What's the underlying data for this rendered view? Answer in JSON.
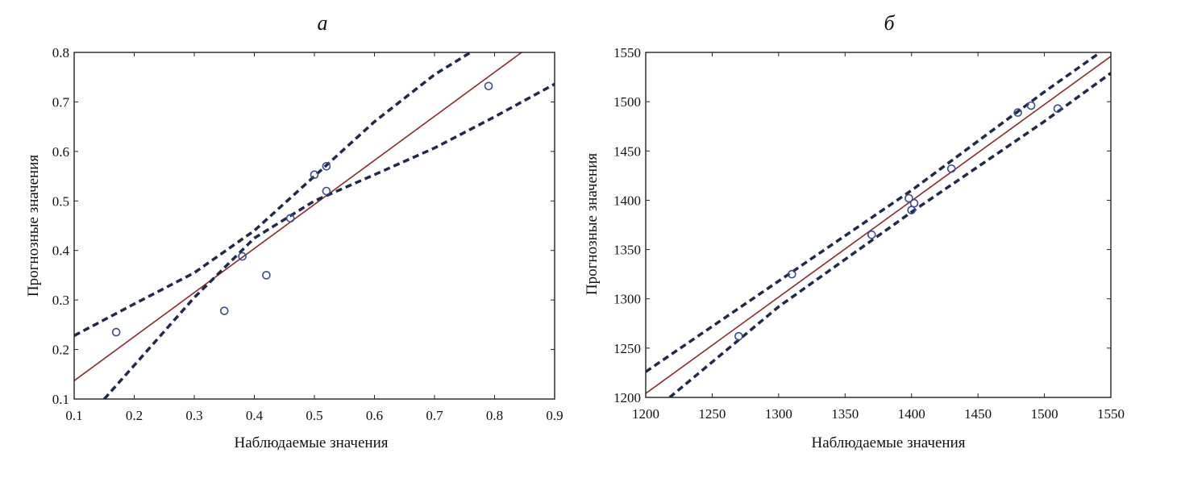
{
  "chart_data": [
    {
      "type": "scatter",
      "panel_label": "а",
      "xlabel": "Наблюдаемые значения",
      "ylabel": "Прогнозные значения",
      "xlim": [
        0.1,
        0.9
      ],
      "ylim": [
        0.1,
        0.8
      ],
      "xticks": [
        "0.1",
        "0.2",
        "0.3",
        "0.4",
        "0.5",
        "0.6",
        "0.7",
        "0.8",
        "0.9"
      ],
      "yticks": [
        "0.1",
        "0.2",
        "0.3",
        "0.4",
        "0.5",
        "0.6",
        "0.7",
        "0.8"
      ],
      "grid": false,
      "points": [
        {
          "x": 0.17,
          "y": 0.235
        },
        {
          "x": 0.35,
          "y": 0.278
        },
        {
          "x": 0.38,
          "y": 0.388
        },
        {
          "x": 0.42,
          "y": 0.35
        },
        {
          "x": 0.46,
          "y": 0.465
        },
        {
          "x": 0.5,
          "y": 0.553
        },
        {
          "x": 0.52,
          "y": 0.52
        },
        {
          "x": 0.52,
          "y": 0.57
        },
        {
          "x": 0.79,
          "y": 0.732
        }
      ],
      "fit_line": {
        "x": [
          0.1,
          0.845
        ],
        "y": [
          0.137,
          0.8
        ]
      },
      "confidence_upper": {
        "x": [
          0.1,
          0.2,
          0.3,
          0.4,
          0.5,
          0.6,
          0.7,
          0.76
        ],
        "y": [
          0.228,
          0.292,
          0.355,
          0.44,
          0.55,
          0.66,
          0.755,
          0.8
        ]
      },
      "confidence_lower": {
        "x": [
          0.15,
          0.2,
          0.3,
          0.4,
          0.5,
          0.6,
          0.7,
          0.8,
          0.9
        ],
        "y": [
          0.1,
          0.168,
          0.305,
          0.425,
          0.5,
          0.553,
          0.607,
          0.67,
          0.736
        ]
      },
      "colors": {
        "points": "#3a4a9a",
        "fit_line": "#8b2b2b",
        "confidence": "#1f2a4a"
      }
    },
    {
      "type": "scatter",
      "panel_label": "б",
      "xlabel": "Наблюдаемые значения",
      "ylabel": "Прогнозные значения",
      "xlim": [
        1200,
        1550
      ],
      "ylim": [
        1200,
        1550
      ],
      "xticks": [
        "1200",
        "1250",
        "1300",
        "1350",
        "1400",
        "1450",
        "1500",
        "1550"
      ],
      "yticks": [
        "1200",
        "1250",
        "1300",
        "1350",
        "1400",
        "1450",
        "1500",
        "1550"
      ],
      "grid": false,
      "points": [
        {
          "x": 1270,
          "y": 1262
        },
        {
          "x": 1310,
          "y": 1325
        },
        {
          "x": 1370,
          "y": 1365
        },
        {
          "x": 1398,
          "y": 1402
        },
        {
          "x": 1400,
          "y": 1390
        },
        {
          "x": 1402,
          "y": 1397
        },
        {
          "x": 1430,
          "y": 1432
        },
        {
          "x": 1480,
          "y": 1489
        },
        {
          "x": 1490,
          "y": 1496
        },
        {
          "x": 1510,
          "y": 1493
        }
      ],
      "fit_line": {
        "x": [
          1200,
          1550
        ],
        "y": [
          1204,
          1546
        ]
      },
      "confidence_upper": {
        "x": [
          1200,
          1300,
          1400,
          1500,
          1542
        ],
        "y": [
          1226,
          1318,
          1410,
          1510,
          1550
        ]
      },
      "confidence_lower": {
        "x": [
          1218,
          1300,
          1400,
          1500,
          1550
        ],
        "y": [
          1200,
          1292,
          1388,
          1480,
          1529
        ]
      },
      "colors": {
        "points": "#3a4a9a",
        "fit_line": "#8b2b2b",
        "confidence": "#1f2a4a"
      }
    }
  ]
}
